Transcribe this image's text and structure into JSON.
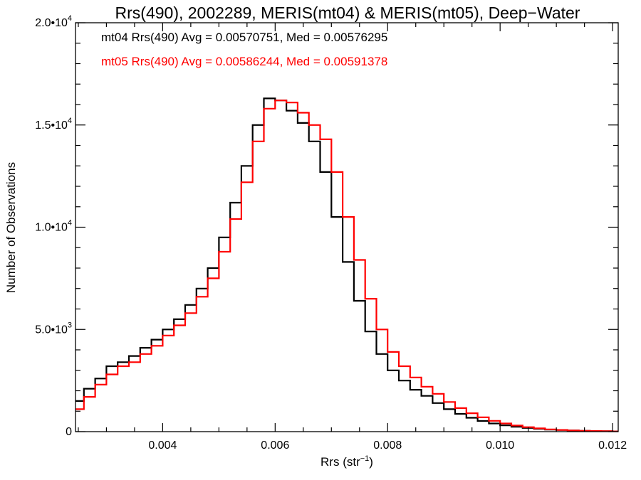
{
  "chart_data": {
    "type": "line",
    "title": "Rrs(490), 2002289, MERIS(mt04) & MERIS(mt05), Deep−Water",
    "xlabel": "Rrs (str",
    "xlabel_sup": "−1",
    "xlabel_end": ")",
    "ylabel": "Number of Observations",
    "xlim": [
      0.00245,
      0.0121
    ],
    "ylim": [
      0,
      20000
    ],
    "grid": false,
    "legend_placement": "top-left",
    "x_ticks": [
      {
        "value": 0.004,
        "label": "0.004"
      },
      {
        "value": 0.006,
        "label": "0.006"
      },
      {
        "value": 0.008,
        "label": "0.008"
      },
      {
        "value": 0.01,
        "label": "0.010"
      },
      {
        "value": 0.012,
        "label": "0.012"
      }
    ],
    "y_ticks": [
      {
        "value": 0,
        "mantissa": "0",
        "exp": ""
      },
      {
        "value": 5000,
        "mantissa": "5.0•10",
        "exp": "3"
      },
      {
        "value": 10000,
        "mantissa": "1.0•10",
        "exp": "4"
      },
      {
        "value": 15000,
        "mantissa": "1.5•10",
        "exp": "4"
      },
      {
        "value": 20000,
        "mantissa": "2.0•10",
        "exp": "4"
      }
    ],
    "series": [
      {
        "name": "mt04 Rrs(490) Avg = 0.00570751, Med = 0.00576295",
        "color": "#000000",
        "x": [
          0.00245,
          0.0026,
          0.0028,
          0.003,
          0.0032,
          0.0034,
          0.0036,
          0.0038,
          0.004,
          0.0042,
          0.0044,
          0.0046,
          0.0048,
          0.005,
          0.0052,
          0.0054,
          0.0056,
          0.0058,
          0.006,
          0.0062,
          0.0064,
          0.0066,
          0.0068,
          0.007,
          0.0072,
          0.0074,
          0.0076,
          0.0078,
          0.008,
          0.0082,
          0.0084,
          0.0086,
          0.0088,
          0.009,
          0.0092,
          0.0094,
          0.0096,
          0.0098,
          0.01,
          0.0102,
          0.0104,
          0.0106,
          0.0108,
          0.011,
          0.0112,
          0.0114,
          0.0116,
          0.0118,
          0.012,
          0.0121
        ],
        "values": [
          1500,
          2100,
          2600,
          3200,
          3400,
          3700,
          4100,
          4500,
          5000,
          5500,
          6200,
          7000,
          8000,
          9500,
          11200,
          13000,
          15000,
          16300,
          16200,
          15700,
          15100,
          14200,
          12700,
          10500,
          8300,
          6400,
          4900,
          3800,
          3000,
          2500,
          2050,
          1750,
          1400,
          1100,
          870,
          680,
          520,
          400,
          310,
          240,
          180,
          140,
          100,
          80,
          60,
          40,
          30,
          20,
          10,
          10
        ]
      },
      {
        "name": "mt05 Rrs(490) Avg = 0.00586244, Med = 0.00591378",
        "color": "#ff0000",
        "x": [
          0.00245,
          0.0026,
          0.0028,
          0.003,
          0.0032,
          0.0034,
          0.0036,
          0.0038,
          0.004,
          0.0042,
          0.0044,
          0.0046,
          0.0048,
          0.005,
          0.0052,
          0.0054,
          0.0056,
          0.0058,
          0.006,
          0.0062,
          0.0064,
          0.0066,
          0.0068,
          0.007,
          0.0072,
          0.0074,
          0.0076,
          0.0078,
          0.008,
          0.0082,
          0.0084,
          0.0086,
          0.0088,
          0.009,
          0.0092,
          0.0094,
          0.0096,
          0.0098,
          0.01,
          0.0102,
          0.0104,
          0.0106,
          0.0108,
          0.011,
          0.0112,
          0.0114,
          0.0116,
          0.0118,
          0.012,
          0.0121
        ],
        "values": [
          1100,
          1700,
          2300,
          2800,
          3200,
          3400,
          3800,
          4200,
          4700,
          5200,
          5800,
          6600,
          7500,
          8800,
          10400,
          12200,
          14200,
          15800,
          16200,
          16100,
          15600,
          15000,
          14300,
          12700,
          10500,
          8400,
          6500,
          5000,
          3900,
          3200,
          2650,
          2200,
          1850,
          1450,
          1150,
          900,
          700,
          530,
          400,
          300,
          220,
          160,
          110,
          85,
          60,
          40,
          30,
          20,
          10,
          10
        ]
      }
    ]
  }
}
